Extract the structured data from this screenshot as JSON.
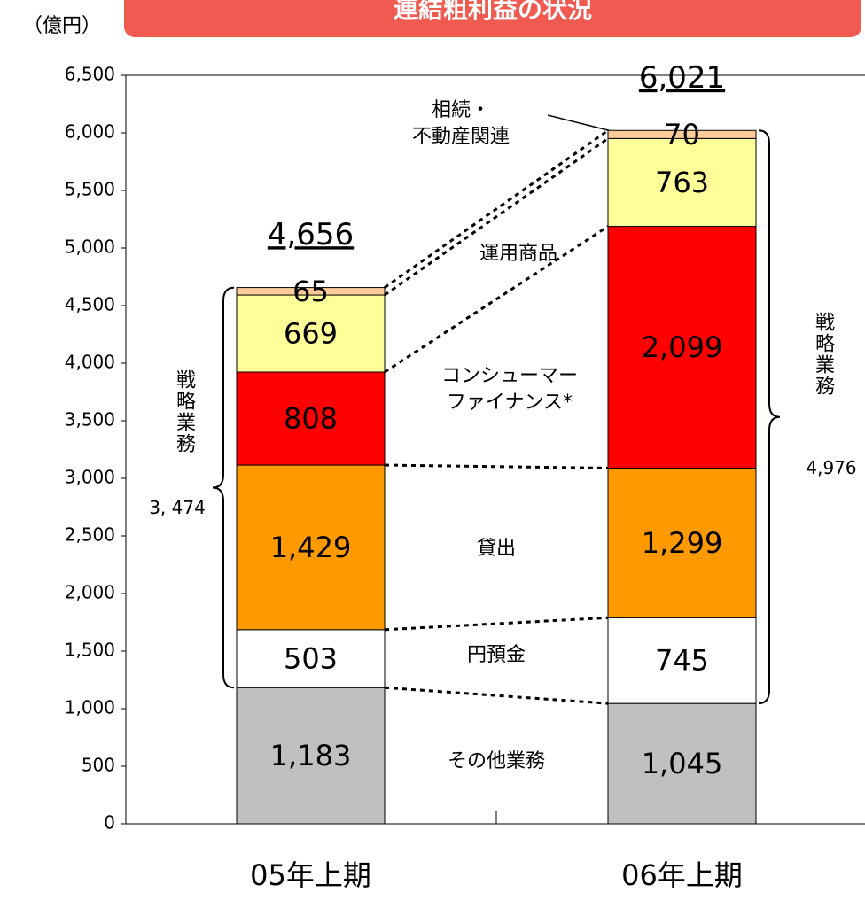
{
  "chart_data": {
    "type": "bar",
    "stacked": true,
    "title": "連結粗利益の状況",
    "unit_label": "（億円）",
    "categories": [
      "05年上期",
      "06年上期"
    ],
    "series": [
      {
        "name": "その他業務",
        "color": "#c0c0c0",
        "values": [
          1183,
          1045
        ],
        "value_labels": [
          "1,183",
          "1,045"
        ]
      },
      {
        "name": "円預金",
        "color": "#ffffff",
        "values": [
          503,
          745
        ]
      },
      {
        "name": "貸出",
        "color": "#ff9900",
        "values": [
          1429,
          1299
        ],
        "value_labels": [
          "1,429",
          "1,299"
        ]
      },
      {
        "name": "コンシューマー\nファイナンス*",
        "color": "#ff0000",
        "values": [
          808,
          2099
        ],
        "value_labels": [
          "808",
          "2,099"
        ]
      },
      {
        "name": "運用商品",
        "color": "#ffff99",
        "values": [
          669,
          763
        ]
      },
      {
        "name": "相続・\n不動産関連",
        "color": "#ffcc99",
        "values": [
          65,
          70
        ]
      }
    ],
    "totals": [
      4656,
      6021
    ],
    "total_labels": [
      "4,656",
      "6,021"
    ],
    "strategic_label": "戦略業務",
    "strategic_totals": [
      3474,
      4976
    ],
    "strategic_total_labels": [
      "3, 474",
      "4,976"
    ],
    "ylim": [
      0,
      6500
    ],
    "yticks": [
      0,
      500,
      {
        "value": 1000,
        "label": "1,000"
      },
      {
        "value": 1500,
        "label": "1,500"
      },
      {
        "value": 2000,
        "label": "2,000"
      },
      {
        "value": 2500,
        "label": "2,500"
      },
      {
        "value": 3000,
        "label": "3,000"
      },
      {
        "value": 3500,
        "label": "3,500"
      },
      {
        "value": 4000,
        "label": "4,000"
      },
      {
        "value": 4500,
        "label": "4,500"
      },
      {
        "value": 5000,
        "label": "5,000"
      },
      {
        "value": 5500,
        "label": "5,500"
      },
      {
        "value": 6000,
        "label": "6,000"
      },
      {
        "value": 6500,
        "label": "6,500"
      }
    ]
  }
}
